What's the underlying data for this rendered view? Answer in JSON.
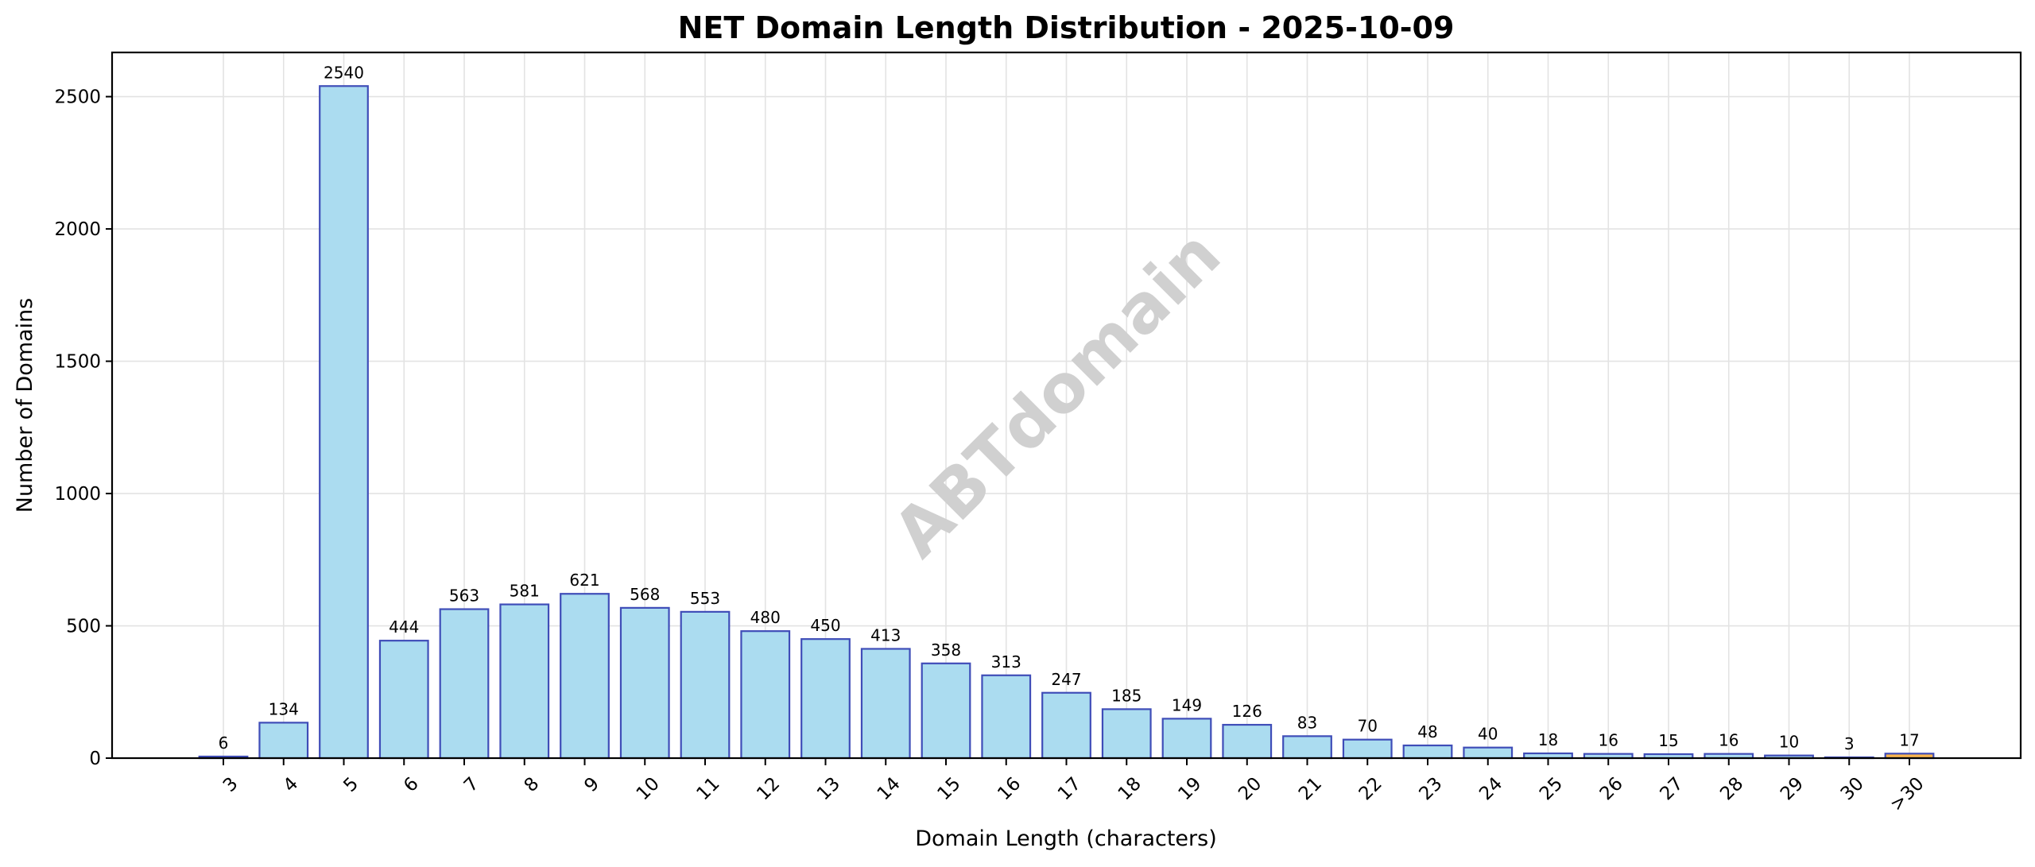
{
  "chart_data": {
    "type": "bar",
    "title": "NET Domain Length Distribution - 2025-10-09",
    "xlabel": "Domain Length (characters)",
    "ylabel": "Number of Domains",
    "categories": [
      "3",
      "4",
      "5",
      "6",
      "7",
      "8",
      "9",
      "10",
      "11",
      "12",
      "13",
      "14",
      "15",
      "16",
      "17",
      "18",
      "19",
      "20",
      "21",
      "22",
      "23",
      "24",
      "25",
      "26",
      "27",
      "28",
      "29",
      "30",
      ">30"
    ],
    "values": [
      6,
      134,
      2540,
      444,
      563,
      581,
      621,
      568,
      553,
      480,
      450,
      413,
      358,
      313,
      247,
      185,
      149,
      126,
      83,
      70,
      48,
      40,
      18,
      16,
      15,
      16,
      10,
      3,
      17
    ],
    "ylim": [
      0,
      2667
    ],
    "yticks": [
      0,
      500,
      1000,
      1500,
      2000,
      2500
    ],
    "grid": true,
    "watermark": "ABTdomain",
    "colors": {
      "bar_fill": "#abdcf0",
      "bar_edge": "#3f4db8",
      "highlight_fill": "#f9b54c",
      "grid": "#e3e3e3",
      "watermark": "#d0d0d0"
    }
  }
}
